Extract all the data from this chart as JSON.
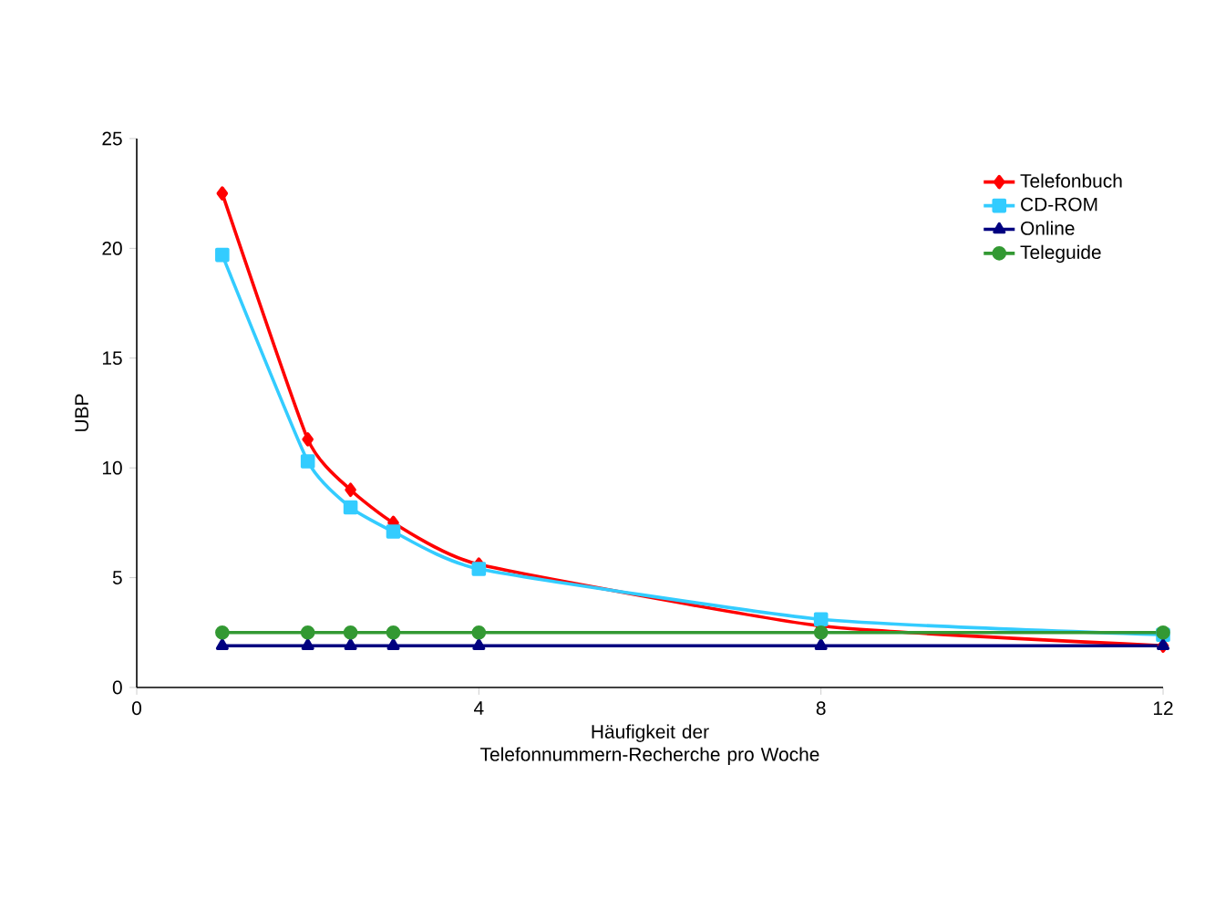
{
  "chart_data": {
    "type": "line",
    "xlabel": "Häufigkeit der Telefonnummern-Recherche pro Woche",
    "ylabel": "UBP",
    "xlim": [
      0,
      12
    ],
    "xticks": [
      0,
      4,
      8,
      12
    ],
    "ylim": [
      0,
      25
    ],
    "yticks": [
      0,
      5,
      10,
      15,
      20,
      25
    ],
    "grid": false,
    "legend": "top right",
    "x": [
      1,
      2,
      2.5,
      3,
      4,
      8,
      12
    ],
    "series": [
      {
        "name": "Telefonbuch",
        "color": "#ff0000",
        "marker": "diamond",
        "values": [
          22.5,
          11.3,
          9.0,
          7.5,
          5.6,
          2.8,
          1.9
        ]
      },
      {
        "name": "CD-ROM",
        "color": "#33ccff",
        "marker": "square",
        "values": [
          19.7,
          10.3,
          8.2,
          7.1,
          5.4,
          3.1,
          2.4
        ]
      },
      {
        "name": "Online",
        "color": "#000080",
        "marker": "triangle",
        "values": [
          1.9,
          1.9,
          1.9,
          1.9,
          1.9,
          1.9,
          1.9
        ]
      },
      {
        "name": "Teleguide",
        "color": "#339933",
        "marker": "circle",
        "values": [
          2.5,
          2.5,
          2.5,
          2.5,
          2.5,
          2.5,
          2.5
        ]
      }
    ]
  }
}
